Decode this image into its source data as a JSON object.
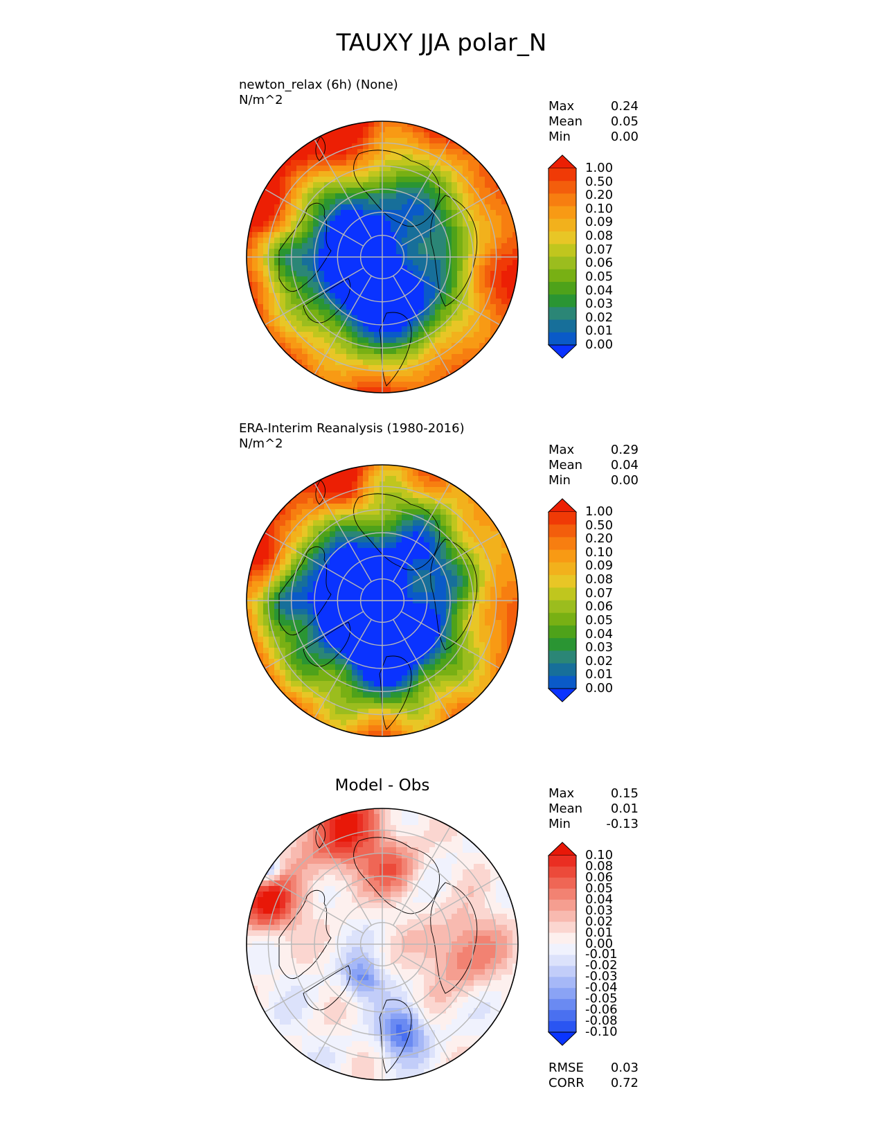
{
  "figure": {
    "title": "TAUXY JJA polar_N"
  },
  "colors": {
    "seq": [
      "#0a33ff",
      "#0a5ac8",
      "#176f9a",
      "#2b8676",
      "#2a9533",
      "#4ea21a",
      "#78b014",
      "#9bbd1e",
      "#c0c61e",
      "#e8c626",
      "#f2b11c",
      "#f89a14",
      "#f77e10",
      "#f35e0c",
      "#f03a06",
      "#ec1f04"
    ],
    "div": [
      "#0a35ff",
      "#2a55f2",
      "#4a70f0",
      "#6a8af2",
      "#8aa3f5",
      "#a6b8f7",
      "#c2cdf9",
      "#dce2fb",
      "#f0f2fd",
      "#fdf0ee",
      "#fbd6d0",
      "#f8bab0",
      "#f59e90",
      "#f28272",
      "#ef6655",
      "#ec4a3a",
      "#ea2e22",
      "#e81808"
    ],
    "land_outline": "#000000",
    "grid": "#b8b8b8"
  },
  "panels": {
    "test": {
      "title": "newton_relax (6h) (None)",
      "units": "N/m^2",
      "stats": [
        {
          "label": "Max",
          "value": "0.24"
        },
        {
          "label": "Mean",
          "value": "0.05"
        },
        {
          "label": "Min",
          "value": "0.00"
        }
      ]
    },
    "ref": {
      "title": "ERA-Interim Reanalysis (1980-2016)",
      "units": "N/m^2",
      "stats": [
        {
          "label": "Max",
          "value": "0.29"
        },
        {
          "label": "Mean",
          "value": "0.04"
        },
        {
          "label": "Min",
          "value": "0.00"
        }
      ]
    },
    "diff": {
      "title": "Model - Obs",
      "stats": [
        {
          "label": "Max",
          "value": "0.15"
        },
        {
          "label": "Mean",
          "value": "0.01"
        },
        {
          "label": "Min",
          "value": "-0.13"
        }
      ],
      "metrics": [
        {
          "label": "RMSE",
          "value": "0.03"
        },
        {
          "label": "CORR",
          "value": "0.72"
        }
      ]
    }
  },
  "chart_data": [
    {
      "type": "heatmap",
      "projection": "north polar stereographic",
      "title": "newton_relax (6h) (None)",
      "units": "N/m^2",
      "colorbar_levels": [
        "1.00",
        "0.50",
        "0.20",
        "0.10",
        "0.09",
        "0.08",
        "0.07",
        "0.06",
        "0.05",
        "0.04",
        "0.03",
        "0.02",
        "0.01",
        "0.00"
      ],
      "colorbar_extend": "both",
      "stats": {
        "max": 0.24,
        "mean": 0.05,
        "min": 0.0
      }
    },
    {
      "type": "heatmap",
      "projection": "north polar stereographic",
      "title": "ERA-Interim Reanalysis (1980-2016)",
      "units": "N/m^2",
      "colorbar_levels": [
        "1.00",
        "0.50",
        "0.20",
        "0.10",
        "0.09",
        "0.08",
        "0.07",
        "0.06",
        "0.05",
        "0.04",
        "0.03",
        "0.02",
        "0.01",
        "0.00"
      ],
      "colorbar_extend": "both",
      "stats": {
        "max": 0.29,
        "mean": 0.04,
        "min": 0.0
      }
    },
    {
      "type": "heatmap",
      "projection": "north polar stereographic",
      "title": "Model - Obs",
      "colorbar_levels": [
        "0.10",
        "0.08",
        "0.06",
        "0.05",
        "0.04",
        "0.03",
        "0.02",
        "0.01",
        "0.00",
        "-0.01",
        "-0.02",
        "-0.03",
        "-0.04",
        "-0.05",
        "-0.06",
        "-0.08",
        "-0.10"
      ],
      "colorbar_extend": "both",
      "stats": {
        "max": 0.15,
        "mean": 0.01,
        "min": -0.13,
        "rmse": 0.03,
        "corr": 0.72
      }
    }
  ]
}
